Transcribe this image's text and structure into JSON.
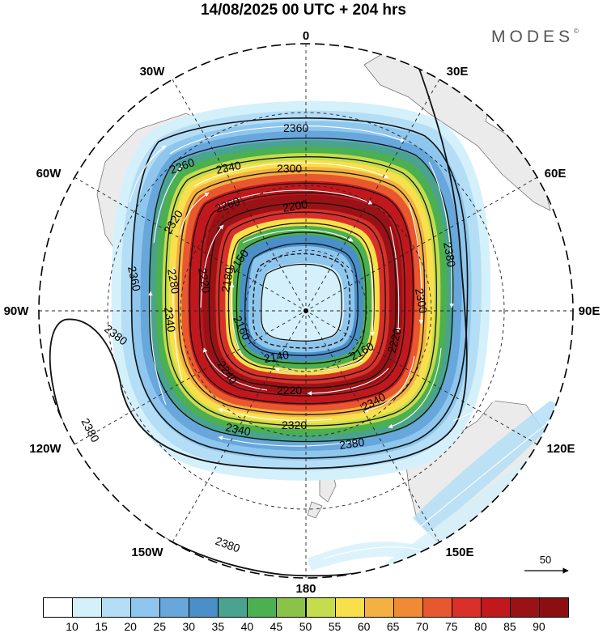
{
  "title": "14/08/2025  00 UTC  + 204 hrs",
  "brand": "MODES",
  "brand_mark": "©",
  "longitude_labels": {
    "lon_0": "0",
    "lon_30e": "30E",
    "lon_60e": "60E",
    "lon_90e": "90E",
    "lon_120e": "120E",
    "lon_150e": "150E",
    "lon_180": "180",
    "lon_150w": "150W",
    "lon_120w": "120W",
    "lon_90w": "90W",
    "lon_60w": "60W",
    "lon_30w": "30W"
  },
  "contours": {
    "c2380_w": "2380",
    "c2380_sw": "2380",
    "c2380_s": "2380",
    "c2380_e": "2380",
    "c2380_se": "2380",
    "c2360_n": "2360",
    "c2360_nw": "2360",
    "c2360_w": "2360",
    "c2340_nw": "2340",
    "c2340_w": "2340",
    "c2340_s": "2340",
    "c2340_se": "2340",
    "c2320_nw": "2320",
    "c2320_s": "2320",
    "c2300_n": "2300",
    "c2300_e": "2300",
    "c2280_w": "2280",
    "c2260_nw": "2260",
    "c2240_s": "2240",
    "c2220_s": "2220",
    "c2220_e": "2220",
    "c2220_w": "2220",
    "c2200_n": "2200",
    "c2180_w": "2180",
    "c2160_w": "2160",
    "c2160_e": "2160",
    "c2150_nw": "2150",
    "c2140_s": "2140"
  },
  "reference_vector": "50",
  "colorbar": {
    "ticks": [
      "10",
      "15",
      "20",
      "25",
      "30",
      "35",
      "40",
      "45",
      "50",
      "55",
      "60",
      "65",
      "70",
      "75",
      "80",
      "85",
      "90"
    ],
    "colors": [
      "#ffffff",
      "#d4f0fb",
      "#b4def6",
      "#8ec6ed",
      "#67a7dc",
      "#4a8fc8",
      "#4aa38e",
      "#4caf50",
      "#8bc34a",
      "#c5dd4c",
      "#f7e04b",
      "#f5b042",
      "#f08a34",
      "#e8582e",
      "#d9302a",
      "#c0181d",
      "#9b1216",
      "#8b0e10"
    ],
    "units_note": ""
  },
  "chart_data": {
    "type": "polar_stereographic_map",
    "field_shaded": "wind speed",
    "shading_levels": [
      10,
      15,
      20,
      25,
      30,
      35,
      40,
      45,
      50,
      55,
      60,
      65,
      70,
      75,
      80,
      85,
      90
    ],
    "contour_field": "geopotential height",
    "contour_levels": [
      2140,
      2150,
      2160,
      2180,
      2200,
      2220,
      2240,
      2260,
      2280,
      2300,
      2320,
      2340,
      2360,
      2380
    ],
    "jet_peak_band": "80-90",
    "reference_vector_speed": 50,
    "longitudes": [
      "0",
      "30E",
      "60E",
      "90E",
      "120E",
      "150E",
      "180",
      "150W",
      "120W",
      "90W",
      "60W",
      "30W"
    ]
  }
}
